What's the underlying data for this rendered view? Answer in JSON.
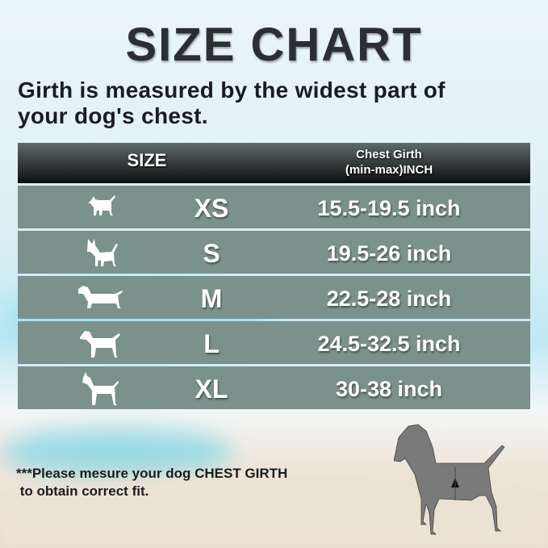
{
  "title": "SIZE CHART",
  "subtitle_line1": "Girth is measured by the widest part of",
  "subtitle_line2": "your dog's chest.",
  "table": {
    "header": {
      "size": "SIZE",
      "girth_line1": "Chest Girth",
      "girth_line2": "(min-max)INCH"
    },
    "rows": [
      {
        "icon": "small-dog-icon",
        "size": "XS",
        "girth": "15.5-19.5 inch"
      },
      {
        "icon": "chihuahua-icon",
        "size": "S",
        "girth": "19.5-26 inch"
      },
      {
        "icon": "dachshund-icon",
        "size": "M",
        "girth": "22.5-28 inch"
      },
      {
        "icon": "medium-dog-icon",
        "size": "L",
        "girth": "24.5-32.5 inch"
      },
      {
        "icon": "great-dane-icon",
        "size": "XL",
        "girth": "30-38 inch"
      }
    ]
  },
  "note_line1": "***Please mesure your dog CHEST GIRTH",
  "note_line2": " to obtain correct fit.",
  "colors": {
    "row": "#7b918b",
    "header_dark": "#0c0e0e",
    "text": "#1a1d1e"
  }
}
